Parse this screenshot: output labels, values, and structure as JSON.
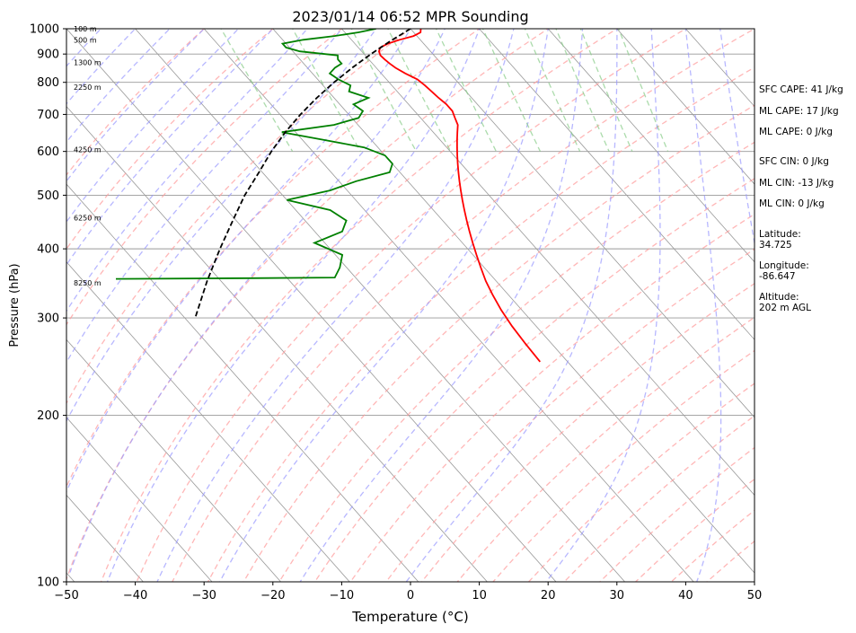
{
  "chart_data": {
    "type": "line",
    "title": "2023/01/14 06:52 MPR Sounding",
    "xlabel": "Temperature (°C)",
    "ylabel": "Pressure (hPa)",
    "xlim": [
      -50,
      50
    ],
    "ylim": [
      1000,
      100
    ],
    "y_scale": "log",
    "skew": "skew-T log-p",
    "x_ticks": [
      "−50",
      "−40",
      "−30",
      "−20",
      "−10",
      "0",
      "10",
      "20",
      "30",
      "40",
      "50"
    ],
    "y_ticks": [
      "1000",
      "900",
      "800",
      "700",
      "600",
      "500",
      "400",
      "300",
      "200",
      "100"
    ],
    "grid": true,
    "colors": {
      "temperature": "#ff0000",
      "dewpoint": "#008000",
      "parcel": "#000000",
      "dry_adiabats": "#ff9999",
      "moist_adiabats": "#9999ff",
      "mixing_ratio": "#88cc88",
      "isotherms": "#999999"
    },
    "series": [
      {
        "type": "temperature",
        "pressure": [
          1000,
          985,
          970,
          955,
          940,
          925,
          910,
          895,
          880,
          865,
          850,
          830,
          810,
          790,
          770,
          750,
          730,
          710,
          690,
          670,
          650,
          630,
          610,
          590,
          570,
          550,
          530,
          510,
          490,
          470,
          450,
          430,
          410,
          390,
          370,
          350,
          330,
          310,
          290,
          270,
          250
        ],
        "values": [
          1.5,
          1.0,
          -0.5,
          -3.0,
          -5.2,
          -6.8,
          -7.5,
          -7.8,
          -7.7,
          -7.5,
          -7.2,
          -6.5,
          -5.5,
          -5.2,
          -5.0,
          -4.8,
          -4.5,
          -4.5,
          -5.0,
          -5.5,
          -6.5,
          -7.5,
          -8.5,
          -9.5,
          -10.5,
          -11.5,
          -12.5,
          -13.5,
          -14.5,
          -15.5,
          -16.5,
          -17.5,
          -18.5,
          -19.5,
          -20.5,
          -21.5,
          -22.3,
          -23.0,
          -23.5,
          -23.8,
          -24.0
        ]
      },
      {
        "type": "dewpoint",
        "pressure": [
          1000,
          985,
          970,
          955,
          940,
          925,
          910,
          895,
          880,
          865,
          850,
          830,
          810,
          790,
          770,
          750,
          730,
          710,
          690,
          670,
          650,
          630,
          610,
          590,
          570,
          550,
          530,
          510,
          490,
          470,
          450,
          430,
          410,
          390,
          370,
          355,
          354,
          353
        ],
        "values": [
          -5.0,
          -8.0,
          -12.0,
          -17.0,
          -20.5,
          -20.5,
          -19.0,
          -14.0,
          -14.5,
          -14.5,
          -16.0,
          -17.5,
          -17.0,
          -16.0,
          -17.0,
          -15.0,
          -18.0,
          -17.5,
          -19.0,
          -23.5,
          -32.0,
          -27.0,
          -22.0,
          -20.0,
          -20.0,
          -21.5,
          -27.5,
          -32.5,
          -40.0,
          -35.0,
          -34.0,
          -36.0,
          -41.5,
          -39.0,
          -41.0,
          -43.0,
          -55.0,
          -75.0
        ]
      },
      {
        "type": "parcel",
        "pressure": [
          1000,
          950,
          900,
          850,
          800,
          750,
          700,
          650,
          600,
          550,
          500,
          450,
          400,
          350,
          300
        ],
        "values": [
          0.0,
          -4.5,
          -9.0,
          -13.5,
          -18.0,
          -22.5,
          -27.0,
          -31.5,
          -36.0,
          -40.5,
          -45.5,
          -50.5,
          -56.0,
          -62.0,
          -68.5
        ]
      }
    ],
    "height_labels": [
      "100 m",
      "500 m",
      "1300 m",
      "2250 m",
      "4250 m",
      "6250 m",
      "8250 m"
    ],
    "height_label_pressures": [
      1000,
      955,
      870,
      785,
      605,
      455,
      347
    ],
    "annotations": [
      "SFC CAPE: 41 J/kg",
      "ML CAPE: 17 J/kg",
      "ML CAPE: 0 J/kg",
      "SFC CIN: 0 J/kg",
      "ML CIN: -13 J/kg",
      "ML CIN: 0 J/kg",
      "Latitude:\n34.725",
      "Longitude:\n-86.647",
      "Altitude:\n202 m AGL"
    ]
  }
}
